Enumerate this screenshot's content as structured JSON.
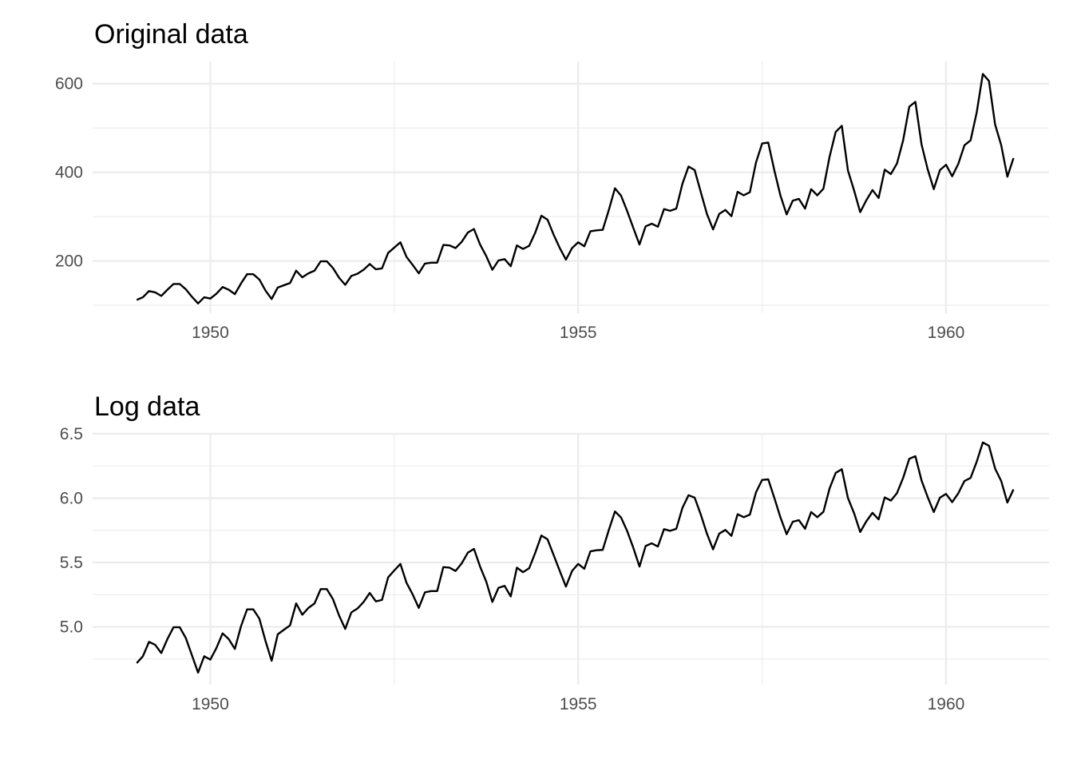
{
  "chart_data": [
    {
      "type": "line",
      "title": "Original data",
      "xlabel": "",
      "ylabel": "",
      "x_frequency": "monthly",
      "x_start": 1949.0,
      "xlim": [
        1948.4,
        1961.4
      ],
      "ylim": [
        82,
        650
      ],
      "x_ticks": [
        1950,
        1955,
        1960
      ],
      "x_tick_labels": [
        "1950",
        "1955",
        "1960"
      ],
      "y_ticks": [
        200,
        400,
        600
      ],
      "y_tick_labels": [
        "200",
        "400",
        "600"
      ],
      "x_minor_ticks": [
        1952.5,
        1957.5
      ],
      "y_minor_ticks": [
        100,
        300,
        500
      ],
      "grid": true,
      "series": [
        {
          "color": "#000000",
          "values": [
            112,
            118,
            132,
            129,
            121,
            135,
            148,
            148,
            136,
            119,
            104,
            118,
            115,
            126,
            141,
            135,
            125,
            149,
            170,
            170,
            158,
            133,
            114,
            140,
            145,
            150,
            178,
            163,
            172,
            178,
            199,
            199,
            184,
            162,
            146,
            166,
            171,
            180,
            193,
            181,
            183,
            218,
            230,
            242,
            209,
            191,
            172,
            194,
            196,
            196,
            236,
            235,
            229,
            243,
            264,
            272,
            237,
            211,
            180,
            201,
            204,
            188,
            235,
            227,
            234,
            264,
            302,
            293,
            259,
            229,
            203,
            229,
            242,
            233,
            267,
            269,
            270,
            315,
            364,
            347,
            312,
            274,
            237,
            278,
            284,
            277,
            317,
            313,
            318,
            374,
            413,
            405,
            355,
            306,
            271,
            306,
            315,
            301,
            356,
            348,
            355,
            422,
            465,
            467,
            404,
            347,
            305,
            336,
            340,
            318,
            362,
            348,
            363,
            435,
            491,
            505,
            404,
            359,
            310,
            337,
            360,
            342,
            406,
            396,
            420,
            472,
            548,
            559,
            463,
            407,
            362,
            405,
            417,
            391,
            419,
            461,
            472,
            535,
            622,
            606,
            508,
            461,
            390,
            432
          ]
        }
      ]
    },
    {
      "type": "line",
      "title": "Log data",
      "xlabel": "",
      "ylabel": "",
      "x_frequency": "monthly",
      "x_start": 1949.0,
      "xlim": [
        1948.4,
        1961.4
      ],
      "ylim": [
        4.55,
        6.5
      ],
      "x_ticks": [
        1950,
        1955,
        1960
      ],
      "x_tick_labels": [
        "1950",
        "1955",
        "1960"
      ],
      "y_ticks": [
        5.0,
        5.5,
        6.0,
        6.5
      ],
      "y_tick_labels": [
        "5.0",
        "5.5",
        "6.0",
        "6.5"
      ],
      "x_minor_ticks": [
        1952.5,
        1957.5
      ],
      "y_minor_ticks": [
        4.75,
        5.25,
        5.75,
        6.25
      ],
      "grid": true,
      "series": [
        {
          "color": "#000000",
          "values": [
            4.718,
            4.771,
            4.883,
            4.86,
            4.796,
            4.905,
            4.997,
            4.997,
            4.913,
            4.779,
            4.644,
            4.771,
            4.745,
            4.836,
            4.949,
            4.905,
            4.828,
            5.004,
            5.136,
            5.136,
            5.063,
            4.89,
            4.736,
            4.942,
            4.977,
            5.011,
            5.182,
            5.094,
            5.147,
            5.182,
            5.293,
            5.293,
            5.215,
            5.088,
            4.984,
            5.112,
            5.142,
            5.193,
            5.263,
            5.198,
            5.209,
            5.384,
            5.438,
            5.489,
            5.342,
            5.252,
            5.147,
            5.268,
            5.278,
            5.278,
            5.464,
            5.46,
            5.434,
            5.493,
            5.576,
            5.606,
            5.468,
            5.352,
            5.193,
            5.303,
            5.318,
            5.236,
            5.46,
            5.425,
            5.455,
            5.576,
            5.71,
            5.68,
            5.557,
            5.434,
            5.313,
            5.434,
            5.489,
            5.451,
            5.587,
            5.595,
            5.598,
            5.753,
            5.897,
            5.849,
            5.743,
            5.613,
            5.468,
            5.628,
            5.649,
            5.624,
            5.759,
            5.746,
            5.762,
            5.924,
            6.023,
            6.004,
            5.872,
            5.724,
            5.602,
            5.724,
            5.753,
            5.707,
            5.875,
            5.852,
            5.872,
            6.045,
            6.142,
            6.146,
            6.001,
            5.849,
            5.72,
            5.817,
            5.829,
            5.762,
            5.892,
            5.852,
            5.894,
            6.075,
            6.196,
            6.225,
            6.001,
            5.883,
            5.737,
            5.82,
            5.886,
            5.835,
            6.006,
            5.981,
            6.04,
            6.157,
            6.306,
            6.326,
            6.138,
            6.009,
            5.892,
            6.004,
            6.033,
            5.969,
            6.038,
            6.133,
            6.157,
            6.283,
            6.433,
            6.407,
            6.23,
            6.133,
            5.966,
            6.068
          ]
        }
      ]
    }
  ]
}
